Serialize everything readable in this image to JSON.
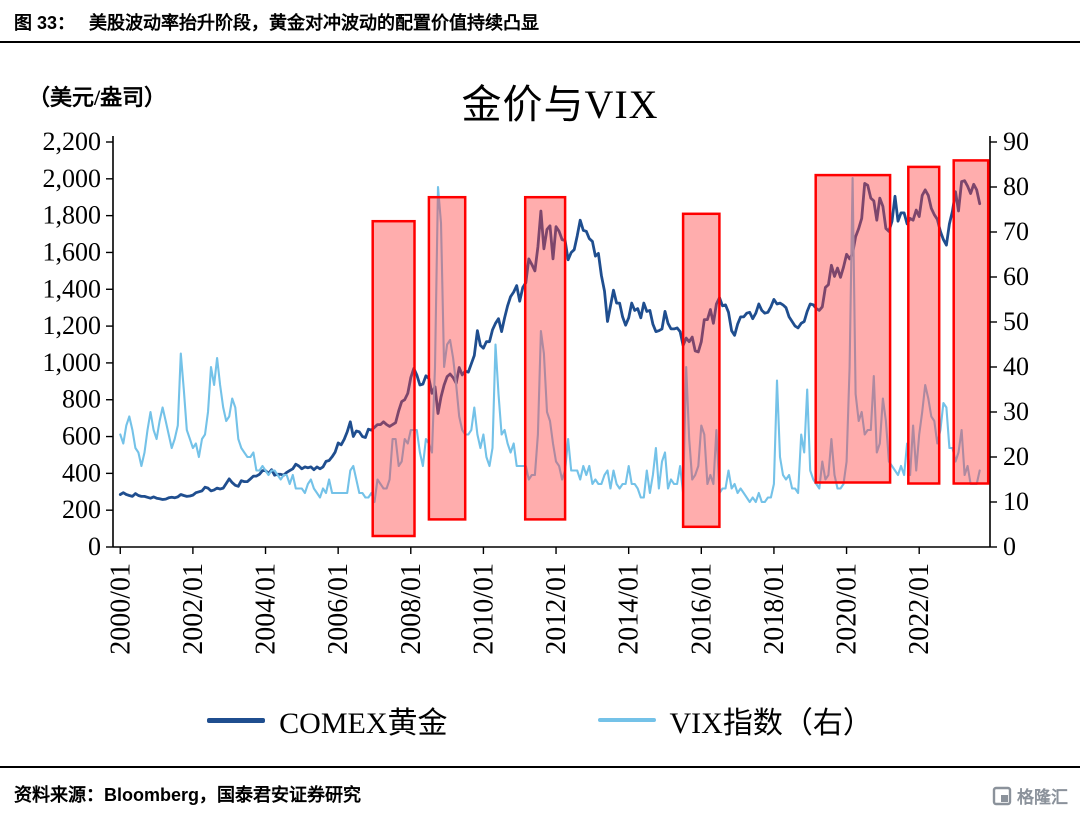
{
  "header": {
    "figure_label": "图 33：",
    "title": "美股波动率抬升阶段，黄金对冲波动的配置价值持续凸显"
  },
  "chart": {
    "unit_label": "（美元/盎司）",
    "title": "金价与VIX"
  },
  "legend": [
    {
      "label": "COMEX黄金",
      "color": "#1F4E8F"
    },
    {
      "label": "VIX指数（右）",
      "color": "#74C2E8"
    }
  ],
  "footer": {
    "source": "资料来源：Bloomberg，国泰君安证券研究",
    "logo_text": "格隆汇"
  },
  "chart_data": {
    "type": "line",
    "title": "金价与VIX",
    "unit_left": "（美元/盎司）",
    "x_start_year": 2000,
    "x_interval_months": 1,
    "x_tick_labels": [
      "2000/01",
      "2002/01",
      "2004/01",
      "2006/01",
      "2008/01",
      "2010/01",
      "2012/01",
      "2014/01",
      "2016/01",
      "2018/01",
      "2020/01",
      "2022/01"
    ],
    "x_labels_rotation": 90,
    "left_axis": {
      "min": 0,
      "max": 2200,
      "tick_step": 200
    },
    "right_axis": {
      "min": 0,
      "max": 90,
      "tick_step": 10
    },
    "grid": false,
    "legend_position": "bottom",
    "series": [
      {
        "name": "COMEX黄金",
        "axis": "left",
        "color": "#1F4E8F",
        "values": [
          285,
          295,
          285,
          280,
          275,
          290,
          280,
          275,
          275,
          270,
          265,
          272,
          265,
          262,
          258,
          260,
          267,
          270,
          267,
          272,
          285,
          280,
          275,
          277,
          282,
          295,
          300,
          305,
          325,
          320,
          305,
          310,
          320,
          315,
          320,
          345,
          370,
          350,
          335,
          330,
          360,
          355,
          355,
          370,
          385,
          385,
          395,
          415,
          415,
          400,
          420,
          390,
          395,
          395,
          390,
          405,
          415,
          425,
          450,
          440,
          425,
          435,
          430,
          435,
          420,
          435,
          425,
          435,
          465,
          470,
          490,
          515,
          565,
          555,
          585,
          625,
          680,
          600,
          630,
          625,
          600,
          595,
          640,
          635,
          650,
          665,
          665,
          680,
          665,
          655,
          665,
          675,
          740,
          790,
          800,
          835,
          920,
          970,
          935,
          880,
          885,
          930,
          915,
          835,
          870,
          725,
          815,
          880,
          925,
          940,
          920,
          890,
          975,
          935,
          955,
          950,
          995,
          1040,
          1175,
          1095,
          1080,
          1115,
          1115,
          1180,
          1215,
          1240,
          1170,
          1245,
          1310,
          1360,
          1385,
          1420,
          1335,
          1410,
          1435,
          1565,
          1535,
          1500,
          1630,
          1825,
          1620,
          1725,
          1745,
          1565,
          1740,
          1715,
          1670,
          1665,
          1560,
          1600,
          1615,
          1690,
          1775,
          1720,
          1715,
          1675,
          1660,
          1580,
          1595,
          1475,
          1390,
          1225,
          1310,
          1395,
          1325,
          1325,
          1250,
          1205,
          1245,
          1325,
          1285,
          1295,
          1245,
          1325,
          1280,
          1285,
          1210,
          1170,
          1175,
          1185,
          1280,
          1215,
          1185,
          1185,
          1190,
          1170,
          1095,
          1135,
          1115,
          1140,
          1065,
          1060,
          1115,
          1235,
          1235,
          1290,
          1215,
          1320,
          1355,
          1310,
          1315,
          1275,
          1175,
          1150,
          1210,
          1250,
          1250,
          1270,
          1275,
          1240,
          1270,
          1320,
          1285,
          1270,
          1275,
          1305,
          1345,
          1320,
          1325,
          1315,
          1300,
          1250,
          1225,
          1200,
          1190,
          1215,
          1225,
          1280,
          1320,
          1315,
          1295,
          1285,
          1305,
          1410,
          1425,
          1530,
          1470,
          1515,
          1465,
          1520,
          1590,
          1565,
          1595,
          1685,
          1730,
          1785,
          1975,
          1965,
          1895,
          1880,
          1775,
          1895,
          1850,
          1730,
          1715,
          1770,
          1905,
          1770,
          1815,
          1815,
          1755,
          1785,
          1775,
          1830,
          1795,
          1910,
          1940,
          1910,
          1840,
          1805,
          1780,
          1715,
          1670,
          1640,
          1755,
          1825,
          1930,
          1825,
          1985,
          1990,
          1960,
          1920,
          1970,
          1940,
          1865
        ]
      },
      {
        "name": "VIX指数（右）",
        "axis": "right",
        "color": "#74C2E8",
        "values": [
          25,
          23,
          27,
          29,
          26,
          22,
          21,
          18,
          21,
          26,
          30,
          26,
          24,
          28,
          31,
          28,
          25,
          22,
          24,
          27,
          43,
          35,
          26,
          24,
          22,
          23,
          20,
          24,
          25,
          30,
          40,
          36,
          42,
          36,
          31,
          28,
          29,
          33,
          31,
          24,
          22,
          21,
          20,
          20,
          21,
          17,
          17,
          18,
          17,
          16,
          17,
          17,
          16,
          15,
          16,
          16,
          14,
          16,
          13,
          13,
          13,
          12,
          14,
          15,
          13,
          12,
          11,
          13,
          12,
          15,
          12,
          12,
          12,
          12,
          12,
          12,
          17,
          18,
          15,
          12,
          12,
          11,
          11,
          12,
          10,
          15,
          14,
          13,
          13,
          15,
          24,
          24,
          18,
          19,
          24,
          23,
          26,
          26,
          26,
          21,
          18,
          24,
          23,
          21,
          40,
          80,
          72,
          40,
          45,
          46,
          42,
          36,
          29,
          26,
          25,
          25,
          26,
          31,
          25,
          22,
          25,
          20,
          18,
          22,
          45,
          34,
          25,
          26,
          23,
          21,
          23,
          18,
          18,
          18,
          18,
          15,
          16,
          16,
          25,
          48,
          43,
          30,
          28,
          23,
          19,
          18,
          15,
          17,
          24,
          17,
          17,
          17,
          15,
          18,
          16,
          18,
          14,
          15,
          14,
          14,
          16,
          17,
          13,
          17,
          14,
          13,
          14,
          14,
          18,
          14,
          14,
          13,
          11,
          11,
          17,
          12,
          16,
          22,
          13,
          19,
          21,
          13,
          15,
          14,
          14,
          18,
          12,
          40,
          24,
          15,
          16,
          18,
          27,
          25,
          14,
          16,
          14,
          26,
          12,
          13,
          13,
          17,
          13,
          14,
          12,
          13,
          12,
          11,
          10,
          11,
          10,
          12,
          10,
          10,
          11,
          11,
          14,
          37,
          20,
          16,
          15,
          16,
          13,
          13,
          12,
          25,
          21,
          35,
          17,
          15,
          14,
          13,
          19,
          15,
          16,
          24,
          16,
          13,
          13,
          14,
          19,
          40,
          82,
          34,
          28,
          30,
          25,
          26,
          26,
          38,
          21,
          23,
          33,
          28,
          19,
          18,
          17,
          16,
          18,
          16,
          23,
          16,
          27,
          17,
          25,
          30,
          36,
          33,
          29,
          28,
          23,
          26,
          32,
          31,
          22,
          22,
          19,
          21,
          26,
          16,
          18,
          14,
          14,
          14,
          17
        ]
      }
    ],
    "highlight_boxes": [
      {
        "x0": 2006.95,
        "x1": 2008.1,
        "y0": 60,
        "y1": 1770
      },
      {
        "x0": 2008.5,
        "x1": 2009.5,
        "y0": 150,
        "y1": 1900
      },
      {
        "x0": 2011.15,
        "x1": 2012.25,
        "y0": 150,
        "y1": 1900
      },
      {
        "x0": 2015.5,
        "x1": 2016.5,
        "y0": 110,
        "y1": 1810
      },
      {
        "x0": 2019.15,
        "x1": 2021.2,
        "y0": 350,
        "y1": 2020
      },
      {
        "x0": 2021.7,
        "x1": 2022.55,
        "y0": 345,
        "y1": 2065
      },
      {
        "x0": 2022.95,
        "x1": 2023.9,
        "y0": 345,
        "y1": 2100
      }
    ],
    "highlight_style": {
      "stroke": "#FF0000",
      "fill": "rgba(255,60,60,0.42)",
      "stroke_width": 2.5
    }
  }
}
